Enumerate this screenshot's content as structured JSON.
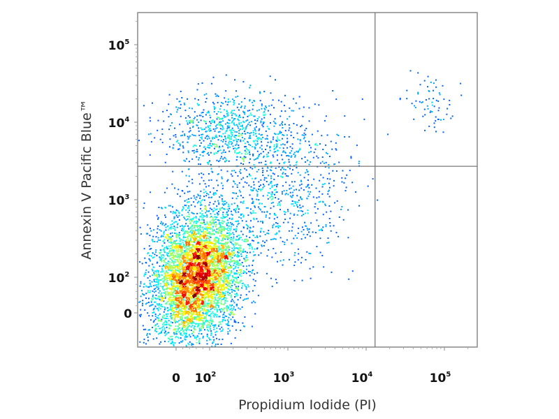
{
  "chart_data": {
    "type": "scatter",
    "subtype": "flow-cytometry-density-dot-plot",
    "xlabel": "Propidium Iodide (PI)",
    "ylabel": "Annexin V Pacific Blue™",
    "x_scale": "biexponential",
    "y_scale": "biexponential",
    "x_ticks": [
      {
        "value": 0,
        "label": "0"
      },
      {
        "value": 100,
        "label": "10",
        "exp": "2"
      },
      {
        "value": 1000,
        "label": "10",
        "exp": "3"
      },
      {
        "value": 10000,
        "label": "10",
        "exp": "4"
      },
      {
        "value": 100000,
        "label": "10",
        "exp": "5"
      }
    ],
    "y_ticks": [
      {
        "value": 0,
        "label": "0"
      },
      {
        "value": 100,
        "label": "10",
        "exp": "2"
      },
      {
        "value": 1000,
        "label": "10",
        "exp": "3"
      },
      {
        "value": 10000,
        "label": "10",
        "exp": "4"
      },
      {
        "value": 100000,
        "label": "10",
        "exp": "5"
      }
    ],
    "quadrant_gate": {
      "x": 13000,
      "y": 2700
    },
    "color_scale": "jet density (blue low, red high)",
    "populations": [
      {
        "x_center": 60,
        "y_center": 110,
        "x_spread_decades": 0.3,
        "y_spread_decades": 0.42,
        "events": 5200
      },
      {
        "x_center": 150,
        "y_center": 8000,
        "x_spread_decades": 0.4,
        "y_spread_decades": 0.25,
        "events": 700
      },
      {
        "x_center": 800,
        "y_center": 1500,
        "x_spread_decades": 0.45,
        "y_spread_decades": 0.5,
        "events": 800
      },
      {
        "x_center": 60000,
        "y_center": 20000,
        "x_spread_decades": 0.15,
        "y_spread_decades": 0.2,
        "events": 70
      }
    ],
    "grid": false,
    "legend": "none"
  }
}
